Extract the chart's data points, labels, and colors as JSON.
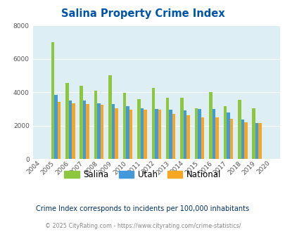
{
  "title": "Salina Property Crime Index",
  "years": [
    2004,
    2005,
    2006,
    2007,
    2008,
    2009,
    2010,
    2011,
    2012,
    2013,
    2014,
    2015,
    2016,
    2017,
    2018,
    2019,
    2020
  ],
  "salina": [
    0,
    7000,
    4550,
    4380,
    4100,
    5000,
    3950,
    3600,
    4250,
    3650,
    3650,
    3050,
    4000,
    3150,
    3550,
    3050,
    0
  ],
  "utah": [
    0,
    3850,
    3500,
    3500,
    3350,
    3300,
    3150,
    3050,
    3000,
    2950,
    2900,
    3000,
    2980,
    2800,
    2350,
    2150,
    0
  ],
  "national": [
    0,
    3400,
    3350,
    3300,
    3250,
    3050,
    2950,
    2950,
    2950,
    2700,
    2600,
    2500,
    2500,
    2400,
    2200,
    2150,
    0
  ],
  "salina_color": "#8dc63f",
  "utah_color": "#4499dd",
  "national_color": "#f5a623",
  "bg_color": "#ddeef5",
  "title_color": "#0055aa",
  "subtitle": "Crime Index corresponds to incidents per 100,000 inhabitants",
  "footer": "© 2025 CityRating.com - https://www.cityrating.com/crime-statistics/",
  "subtitle_color": "#003366",
  "footer_color": "#888888",
  "footer_link_color": "#4499dd",
  "ylim": [
    0,
    8000
  ],
  "yticks": [
    0,
    2000,
    4000,
    6000,
    8000
  ],
  "bar_width": 0.22
}
